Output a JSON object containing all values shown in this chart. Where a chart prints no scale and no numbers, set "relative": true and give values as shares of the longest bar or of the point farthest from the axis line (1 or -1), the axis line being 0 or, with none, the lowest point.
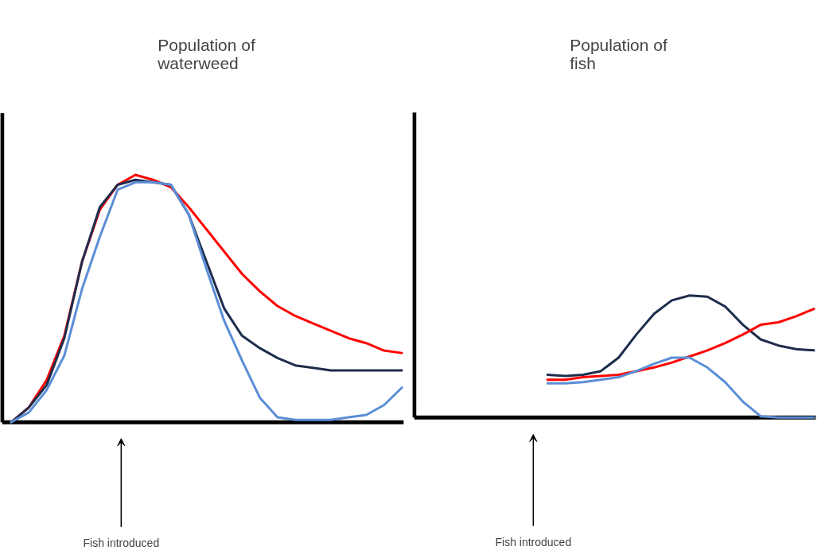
{
  "chart_data": [
    {
      "type": "line",
      "title": "Population of waterweed",
      "relative": true,
      "categories": [
        null,
        null,
        null,
        null,
        null,
        null,
        null,
        null,
        null,
        null,
        null,
        null,
        null,
        null,
        null,
        null,
        null,
        null,
        null,
        null,
        null,
        null,
        null
      ],
      "annotations": [
        "Fish introduced"
      ],
      "series": [
        {
          "color": "#ff0000",
          "values": [
            0,
            0.06,
            0.17,
            0.35,
            0.65,
            0.86,
            0.96,
            1.0,
            0.98,
            0.95,
            0.87,
            0.78,
            0.69,
            0.6,
            0.53,
            0.47,
            0.43,
            0.4,
            0.37,
            0.34,
            0.32,
            0.29,
            0.28
          ]
        },
        {
          "color": "#1f2d4d",
          "values": [
            0,
            0.06,
            0.15,
            0.34,
            0.65,
            0.87,
            0.96,
            0.98,
            0.97,
            0.96,
            0.84,
            0.65,
            0.46,
            0.35,
            0.3,
            0.26,
            0.23,
            0.22,
            0.21,
            0.21,
            0.21,
            0.21,
            0.21
          ]
        },
        {
          "color": "#5b8ed6",
          "values": [
            0,
            0.04,
            0.13,
            0.27,
            0.54,
            0.75,
            0.94,
            0.97,
            0.97,
            0.96,
            0.84,
            0.62,
            0.41,
            0.25,
            0.1,
            0.02,
            0.01,
            0.01,
            0.01,
            0.02,
            0.03,
            0.07,
            0.14
          ]
        }
      ]
    },
    {
      "type": "line",
      "title": "Population of fish",
      "relative": true,
      "categories": [
        null,
        null,
        null,
        null,
        null,
        null,
        null,
        null,
        null,
        null,
        null,
        null,
        null,
        null,
        null,
        null,
        null,
        null,
        null,
        null,
        null,
        null,
        null
      ],
      "annotations": [
        "Fish introduced"
      ],
      "series": [
        {
          "color": "#1f2d4d",
          "values": [
            null,
            null,
            null,
            null,
            null,
            null,
            null,
            0.35,
            0.34,
            0.35,
            0.38,
            0.49,
            0.68,
            0.85,
            0.96,
            1.0,
            0.99,
            0.91,
            0.76,
            0.64,
            0.59,
            0.56,
            0.55
          ]
        },
        {
          "color": "#ff0000",
          "values": [
            null,
            null,
            null,
            null,
            null,
            null,
            null,
            0.31,
            0.31,
            0.33,
            0.34,
            0.35,
            0.38,
            0.41,
            0.45,
            0.5,
            0.55,
            0.61,
            0.68,
            0.76,
            0.78,
            0.83,
            0.89
          ]
        },
        {
          "color": "#5b8ed6",
          "values": [
            null,
            null,
            null,
            null,
            null,
            null,
            null,
            0.28,
            0.28,
            0.29,
            0.31,
            0.33,
            0.38,
            0.44,
            0.49,
            0.49,
            0.41,
            0.29,
            0.13,
            0.01,
            0,
            0,
            0
          ]
        }
      ]
    }
  ]
}
